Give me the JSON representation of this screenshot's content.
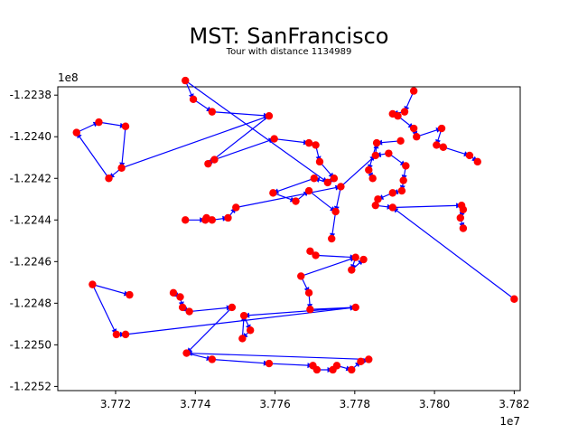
{
  "chart_data": {
    "type": "scatter",
    "title": "MST: SanFrancisco",
    "subtitle": "Tour with distance 1134989",
    "xlabel": "",
    "ylabel": "",
    "x_offset_label": "1e7",
    "y_offset_label": "1e8",
    "xlim": [
      37.7055,
      37.8215
    ],
    "ylim": [
      -1.22522,
      -1.22376
    ],
    "x_ticks": [
      37.72,
      37.74,
      37.76,
      37.78,
      37.8,
      37.82
    ],
    "x_tick_labels": [
      "3.772",
      "3.774",
      "3.776",
      "3.778",
      "3.780",
      "3.782"
    ],
    "y_ticks": [
      -1.2252,
      -1.225,
      -1.2248,
      -1.2246,
      -1.2244,
      -1.2242,
      -1.224,
      -1.2238
    ],
    "y_tick_labels": [
      "-1.2252",
      "-1.2250",
      "-1.2248",
      "-1.2246",
      "-1.2244",
      "-1.2242",
      "-1.2240",
      "-1.2238"
    ],
    "grid": false,
    "point_color": "#ff0000",
    "edge_color": "#0000ff",
    "points": [
      [
        37.7102,
        -1.22398
      ],
      [
        37.7158,
        -1.22393
      ],
      [
        37.7225,
        -1.22395
      ],
      [
        37.7215,
        -1.22415
      ],
      [
        37.7183,
        -1.2242
      ],
      [
        37.7375,
        -1.22373
      ],
      [
        37.7395,
        -1.22382
      ],
      [
        37.7442,
        -1.22388
      ],
      [
        37.7585,
        -1.2239
      ],
      [
        37.7432,
        -1.22413
      ],
      [
        37.7448,
        -1.22411
      ],
      [
        37.7598,
        -1.22401
      ],
      [
        37.7685,
        -1.22403
      ],
      [
        37.7702,
        -1.22404
      ],
      [
        37.7712,
        -1.22412
      ],
      [
        37.7748,
        -1.2242
      ],
      [
        37.7732,
        -1.22422
      ],
      [
        37.7698,
        -1.2242
      ],
      [
        37.7595,
        -1.22427
      ],
      [
        37.7652,
        -1.22431
      ],
      [
        37.7685,
        -1.22426
      ],
      [
        37.7765,
        -1.22424
      ],
      [
        37.7752,
        -1.22436
      ],
      [
        37.7742,
        -1.22449
      ],
      [
        37.7948,
        -1.22378
      ],
      [
        37.7925,
        -1.22388
      ],
      [
        37.7895,
        -1.22389
      ],
      [
        37.7908,
        -1.2239
      ],
      [
        37.7948,
        -1.22396
      ],
      [
        37.7955,
        -1.224
      ],
      [
        37.8018,
        -1.22396
      ],
      [
        37.8005,
        -1.22404
      ],
      [
        37.8022,
        -1.22405
      ],
      [
        37.8088,
        -1.22409
      ],
      [
        37.8108,
        -1.22412
      ],
      [
        37.7915,
        -1.22402
      ],
      [
        37.7855,
        -1.22403
      ],
      [
        37.7852,
        -1.22409
      ],
      [
        37.7835,
        -1.22416
      ],
      [
        37.7845,
        -1.2242
      ],
      [
        37.7885,
        -1.22408
      ],
      [
        37.7928,
        -1.22414
      ],
      [
        37.7922,
        -1.22421
      ],
      [
        37.7918,
        -1.22426
      ],
      [
        37.7895,
        -1.22427
      ],
      [
        37.7858,
        -1.2243
      ],
      [
        37.7852,
        -1.22433
      ],
      [
        37.7895,
        -1.22434
      ],
      [
        37.8068,
        -1.22433
      ],
      [
        37.8072,
        -1.22435
      ],
      [
        37.8065,
        -1.22439
      ],
      [
        37.8072,
        -1.22444
      ],
      [
        37.82,
        -1.22478
      ],
      [
        37.7375,
        -1.2244
      ],
      [
        37.7425,
        -1.2244
      ],
      [
        37.7428,
        -1.22439
      ],
      [
        37.7442,
        -1.2244
      ],
      [
        37.7482,
        -1.22439
      ],
      [
        37.7502,
        -1.22434
      ],
      [
        37.7688,
        -1.22455
      ],
      [
        37.7702,
        -1.22457
      ],
      [
        37.7802,
        -1.22458
      ],
      [
        37.7792,
        -1.22464
      ],
      [
        37.7822,
        -1.22459
      ],
      [
        37.7665,
        -1.22467
      ],
      [
        37.7685,
        -1.22475
      ],
      [
        37.7688,
        -1.22483
      ],
      [
        37.7802,
        -1.22482
      ],
      [
        37.7142,
        -1.22471
      ],
      [
        37.7235,
        -1.22476
      ],
      [
        37.7345,
        -1.22475
      ],
      [
        37.7362,
        -1.22477
      ],
      [
        37.7368,
        -1.22482
      ],
      [
        37.7385,
        -1.22484
      ],
      [
        37.7492,
        -1.22482
      ],
      [
        37.7522,
        -1.22486
      ],
      [
        37.7202,
        -1.22495
      ],
      [
        37.7225,
        -1.22495
      ],
      [
        37.7538,
        -1.22493
      ],
      [
        37.7518,
        -1.22497
      ],
      [
        37.7378,
        -1.22504
      ],
      [
        37.7442,
        -1.22507
      ],
      [
        37.7585,
        -1.22509
      ],
      [
        37.7695,
        -1.2251
      ],
      [
        37.7705,
        -1.22512
      ],
      [
        37.7745,
        -1.22512
      ],
      [
        37.7755,
        -1.2251
      ],
      [
        37.7792,
        -1.22512
      ],
      [
        37.7815,
        -1.22508
      ],
      [
        37.7835,
        -1.22507
      ]
    ],
    "edges": [
      [
        0,
        1
      ],
      [
        1,
        2
      ],
      [
        2,
        3
      ],
      [
        3,
        4
      ],
      [
        4,
        0
      ],
      [
        3,
        8
      ],
      [
        8,
        9
      ],
      [
        9,
        10
      ],
      [
        5,
        6
      ],
      [
        6,
        7
      ],
      [
        7,
        8
      ],
      [
        5,
        16
      ],
      [
        10,
        11
      ],
      [
        11,
        12
      ],
      [
        12,
        13
      ],
      [
        13,
        14
      ],
      [
        14,
        15
      ],
      [
        15,
        16
      ],
      [
        16,
        17
      ],
      [
        17,
        18
      ],
      [
        18,
        19
      ],
      [
        19,
        20
      ],
      [
        20,
        22
      ],
      [
        21,
        22
      ],
      [
        22,
        23
      ],
      [
        21,
        37
      ],
      [
        37,
        36
      ],
      [
        36,
        38
      ],
      [
        38,
        39
      ],
      [
        24,
        25
      ],
      [
        25,
        26
      ],
      [
        26,
        27
      ],
      [
        27,
        28
      ],
      [
        28,
        29
      ],
      [
        29,
        30
      ],
      [
        30,
        31
      ],
      [
        31,
        32
      ],
      [
        32,
        33
      ],
      [
        33,
        34
      ],
      [
        35,
        36
      ],
      [
        40,
        37
      ],
      [
        40,
        41
      ],
      [
        41,
        42
      ],
      [
        42,
        43
      ],
      [
        43,
        44
      ],
      [
        44,
        45
      ],
      [
        45,
        46
      ],
      [
        46,
        47
      ],
      [
        47,
        48
      ],
      [
        48,
        49
      ],
      [
        49,
        50
      ],
      [
        50,
        51
      ],
      [
        52,
        47
      ],
      [
        53,
        54
      ],
      [
        54,
        55
      ],
      [
        55,
        56
      ],
      [
        56,
        57
      ],
      [
        57,
        58
      ],
      [
        58,
        21
      ],
      [
        59,
        60
      ],
      [
        60,
        61
      ],
      [
        61,
        62
      ],
      [
        62,
        63
      ],
      [
        64,
        65
      ],
      [
        65,
        66
      ],
      [
        66,
        67
      ],
      [
        64,
        61
      ],
      [
        68,
        69
      ],
      [
        70,
        71
      ],
      [
        71,
        72
      ],
      [
        72,
        73
      ],
      [
        73,
        74
      ],
      [
        68,
        76
      ],
      [
        76,
        77
      ],
      [
        77,
        67
      ],
      [
        74,
        80
      ],
      [
        75,
        78
      ],
      [
        78,
        79
      ],
      [
        79,
        75
      ],
      [
        80,
        81
      ],
      [
        81,
        82
      ],
      [
        82,
        83
      ],
      [
        83,
        84
      ],
      [
        84,
        85
      ],
      [
        85,
        86
      ],
      [
        86,
        87
      ],
      [
        87,
        88
      ],
      [
        88,
        89
      ],
      [
        89,
        80
      ],
      [
        67,
        75
      ]
    ]
  }
}
